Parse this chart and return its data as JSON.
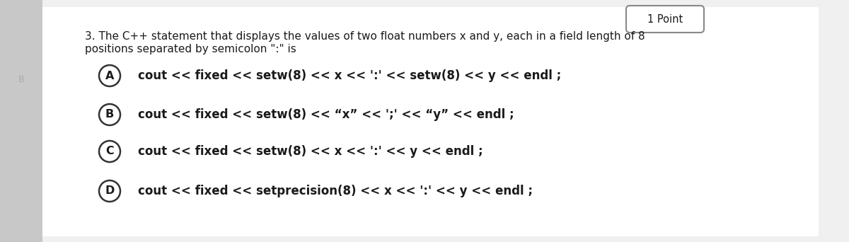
{
  "bg_color": "#f0f0f0",
  "content_bg": "#ffffff",
  "title_text_line1": "3. The C++ statement that displays the values of two float numbers x and y, each in a field length of 8",
  "title_text_line2": "positions separated by semicolon \":\" is",
  "point_label": "1 Point",
  "options": [
    {
      "label": "A",
      "text": "cout << fixed << setw(8) << x << ':' << setw(8) << y << endl ;"
    },
    {
      "label": "B",
      "text": "cout << fixed << setw(8) << “x” << ';' << “y” << endl ;"
    },
    {
      "label": "C",
      "text": "cout << fixed << setw(8) << x << ':' << y << endl ;"
    },
    {
      "label": "D",
      "text": "cout << fixed << setprecision(8) << x << ':' << y << endl ;"
    }
  ],
  "title_fontsize": 11.0,
  "option_fontsize": 12.0,
  "point_fontsize": 10.5,
  "text_color": "#1a1a1a",
  "circle_edge_color": "#333333",
  "circle_fill_color": "#ffffff"
}
